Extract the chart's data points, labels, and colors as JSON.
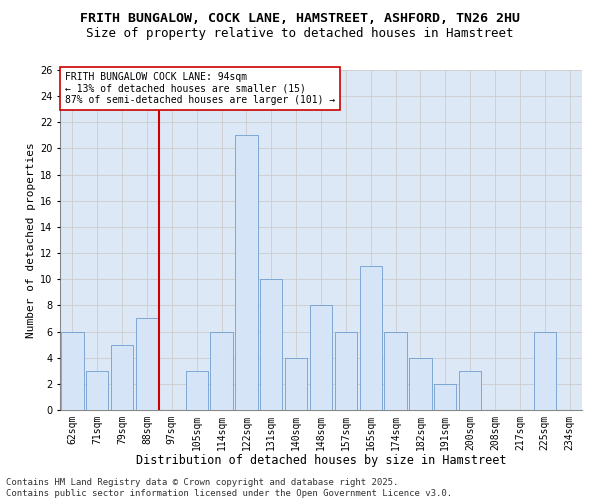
{
  "title1": "FRITH BUNGALOW, COCK LANE, HAMSTREET, ASHFORD, TN26 2HU",
  "title2": "Size of property relative to detached houses in Hamstreet",
  "xlabel": "Distribution of detached houses by size in Hamstreet",
  "ylabel": "Number of detached properties",
  "categories": [
    "62sqm",
    "71sqm",
    "79sqm",
    "88sqm",
    "97sqm",
    "105sqm",
    "114sqm",
    "122sqm",
    "131sqm",
    "140sqm",
    "148sqm",
    "157sqm",
    "165sqm",
    "174sqm",
    "182sqm",
    "191sqm",
    "200sqm",
    "208sqm",
    "217sqm",
    "225sqm",
    "234sqm"
  ],
  "values": [
    6,
    3,
    5,
    7,
    0,
    3,
    6,
    21,
    10,
    4,
    8,
    6,
    11,
    6,
    4,
    2,
    3,
    0,
    0,
    6,
    0
  ],
  "bar_color": "#d6e4f7",
  "bar_edge_color": "#5b8fc9",
  "property_line_color": "#cc0000",
  "annotation_text": "FRITH BUNGALOW COCK LANE: 94sqm\n← 13% of detached houses are smaller (15)\n87% of semi-detached houses are larger (101) →",
  "annotation_box_color": "#ffffff",
  "annotation_box_edge": "#cc0000",
  "ylim": [
    0,
    26
  ],
  "yticks": [
    0,
    2,
    4,
    6,
    8,
    10,
    12,
    14,
    16,
    18,
    20,
    22,
    24,
    26
  ],
  "grid_color": "#cccccc",
  "background_color": "#dce8f5",
  "footer_text": "Contains HM Land Registry data © Crown copyright and database right 2025.\nContains public sector information licensed under the Open Government Licence v3.0.",
  "title1_fontsize": 9.5,
  "title2_fontsize": 9,
  "xlabel_fontsize": 8.5,
  "ylabel_fontsize": 8,
  "tick_fontsize": 7,
  "annotation_fontsize": 7,
  "footer_fontsize": 6.5
}
